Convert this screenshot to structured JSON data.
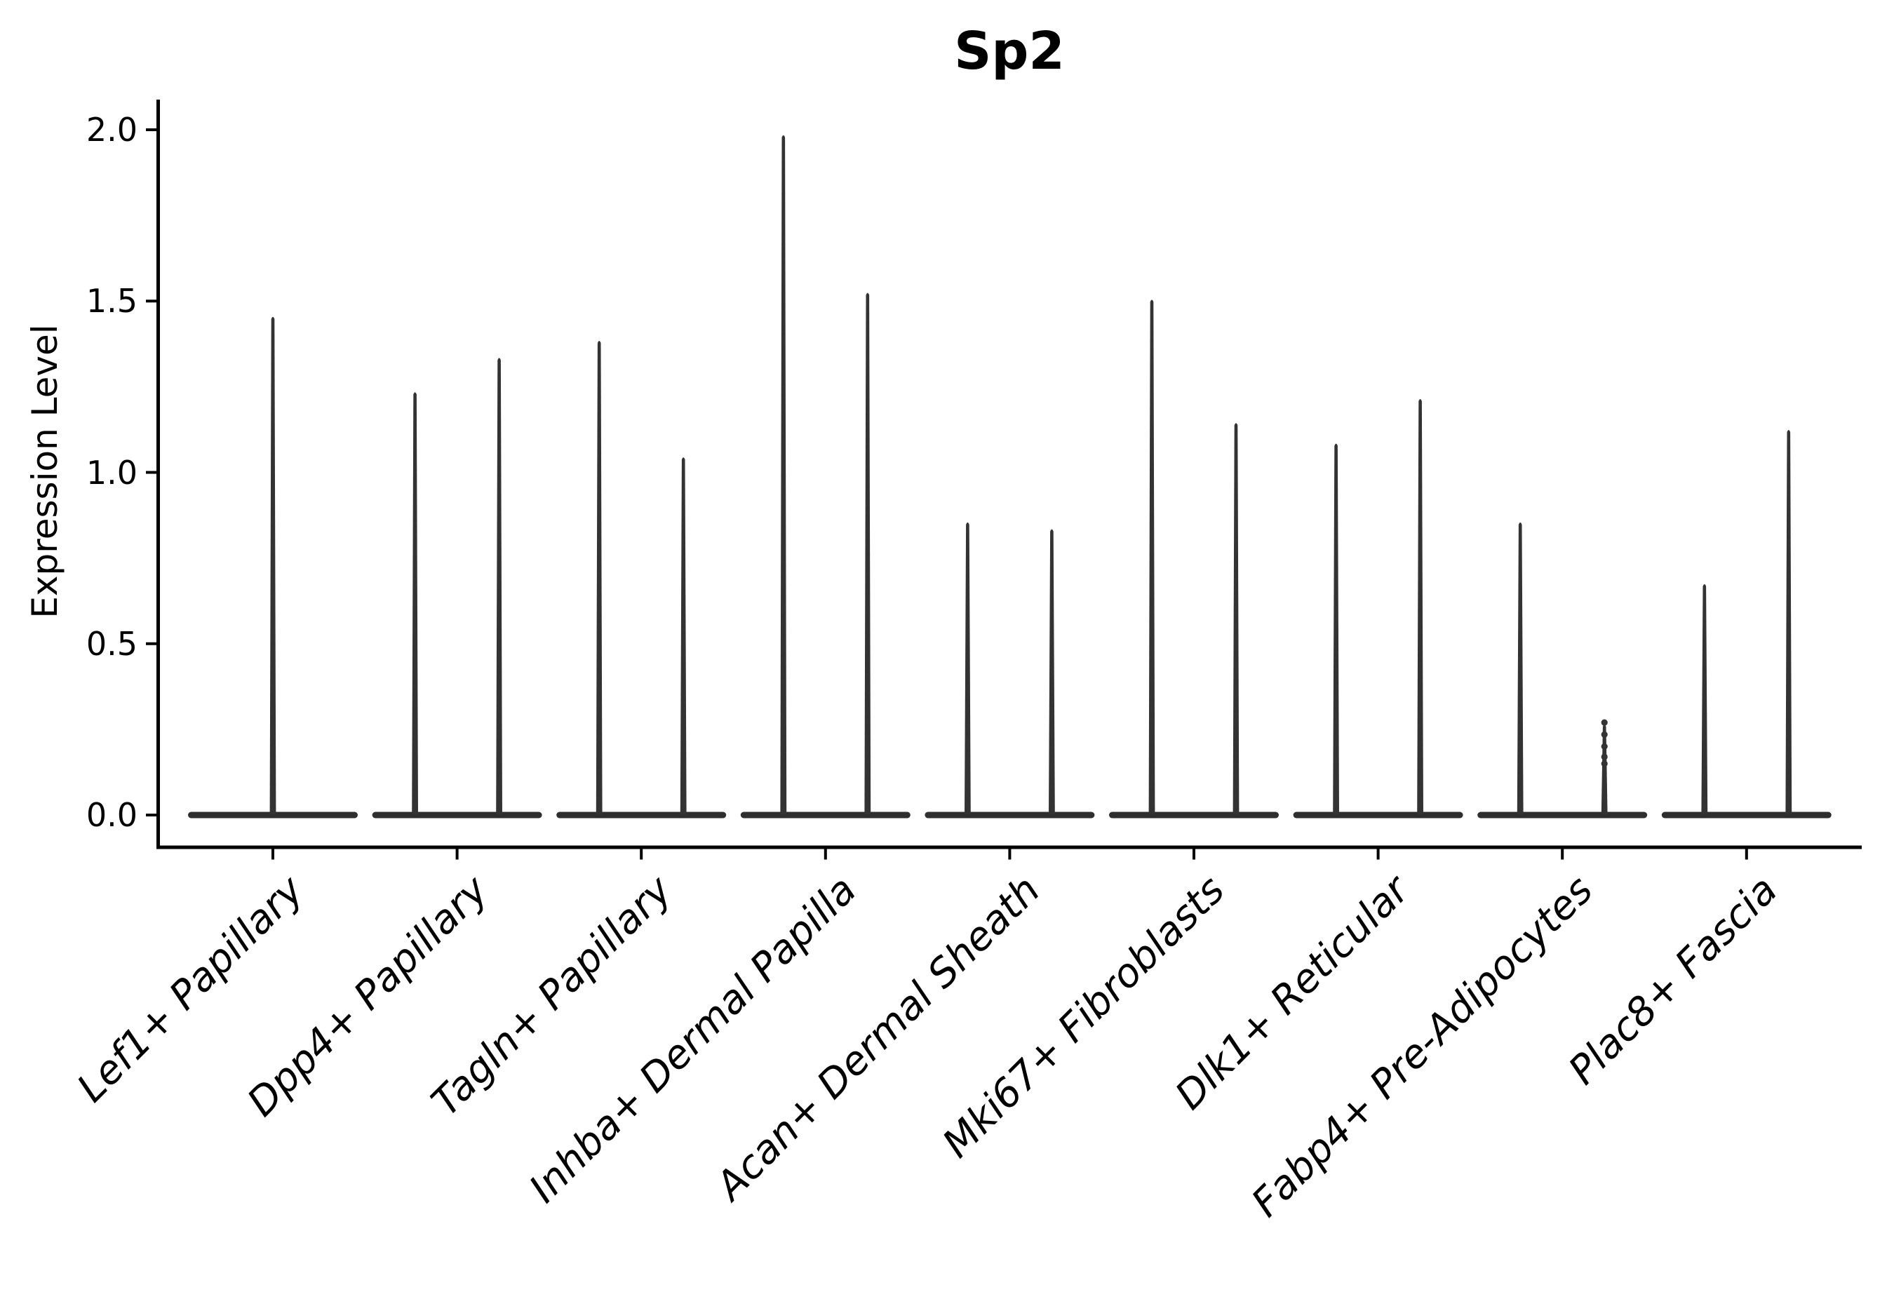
{
  "chart_data": {
    "type": "violin",
    "title": "Sp2",
    "ylabel": "Expression Level",
    "xlabel": "",
    "ylim": [
      0,
      2.05
    ],
    "yticks": [
      0.0,
      0.5,
      1.0,
      1.5,
      2.0
    ],
    "ytick_labels": [
      "0.0",
      "0.5",
      "1.0",
      "1.5",
      "2.0"
    ],
    "grid": false,
    "legend": "none",
    "categories": [
      "Lef1+ Papillary",
      "Dpp4+ Papillary",
      "Tagln+ Papillary",
      "Inhba+ Dermal Papilla",
      "Acan+ Dermal Sheath",
      "Mki67+ Fibroblasts",
      "Dlk1+ Reticular",
      "Fabp4+ Pre-Adipocytes",
      "Plac8+ Fascia"
    ],
    "violins": [
      {
        "category": "Lef1+ Papillary",
        "maxima": [
          1.46
        ]
      },
      {
        "category": "Dpp4+ Papillary",
        "maxima": [
          1.24,
          1.34
        ]
      },
      {
        "category": "Tagln+ Papillary",
        "maxima": [
          1.39,
          1.05
        ]
      },
      {
        "category": "Inhba+ Dermal Papilla",
        "maxima": [
          1.99,
          1.53
        ]
      },
      {
        "category": "Acan+ Dermal Sheath",
        "maxima": [
          0.86,
          0.84
        ]
      },
      {
        "category": "Mki67+ Fibroblasts",
        "maxima": [
          1.51,
          1.15
        ]
      },
      {
        "category": "Dlk1+ Reticular",
        "maxima": [
          1.09,
          1.22
        ]
      },
      {
        "category": "Fabp4+ Pre-Adipocytes",
        "maxima": [
          0.86,
          0.27
        ],
        "jitter_dots": [
          [
            1,
            0.27
          ],
          [
            1,
            0.235
          ],
          [
            1,
            0.2
          ],
          [
            1,
            0.17
          ],
          [
            1,
            0.15
          ]
        ]
      },
      {
        "category": "Plac8+ Fascia",
        "maxima": [
          0.68,
          1.13
        ]
      }
    ],
    "description": "All violins collapse to a flat bar at expression 0 with a thin vertical spike up to the maximum expressing cells",
    "colors": {
      "violin_fill": "#333333",
      "zero_bar_fill": "#2f2f2f",
      "axis_color": "#000000",
      "background": "#ffffff"
    }
  }
}
